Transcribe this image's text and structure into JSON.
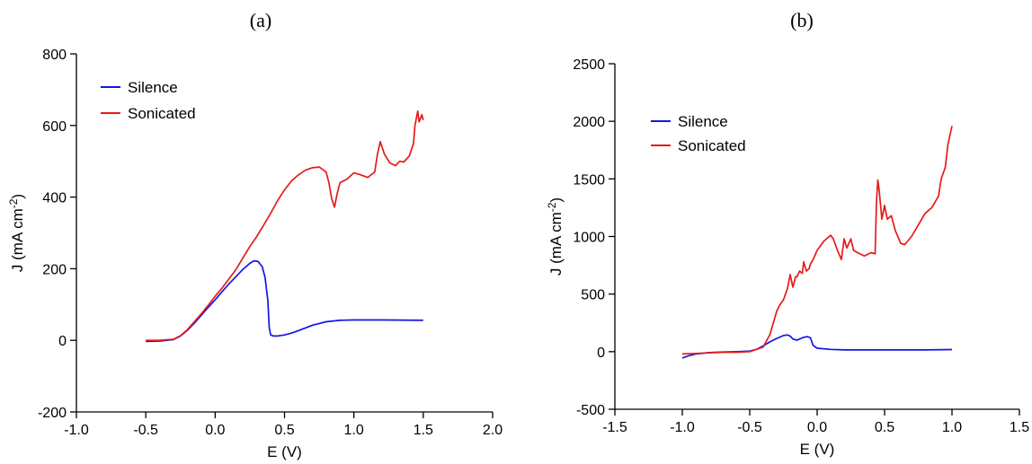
{
  "figure": {
    "panels": [
      {
        "label": "(a)"
      },
      {
        "label": "(b)"
      }
    ]
  },
  "chart_data": [
    {
      "type": "line",
      "panel": "(a)",
      "title": "",
      "xlabel": "E (V)",
      "ylabel": "J (mA cm-2)",
      "xlim": [
        -1.0,
        2.0
      ],
      "ylim": [
        -200,
        800
      ],
      "xticks": [
        -1.0,
        -0.5,
        0.0,
        0.5,
        1.0,
        1.5,
        2.0
      ],
      "yticks": [
        -200,
        0,
        200,
        400,
        600,
        800
      ],
      "xtick_labels": [
        "-1.0",
        "-0.5",
        "0.0",
        "0.5",
        "1.0",
        "1.5",
        "2.0"
      ],
      "ytick_labels": [
        "-200",
        "0",
        "200",
        "400",
        "600",
        "800"
      ],
      "grid": false,
      "legend_position": "top-left",
      "series": [
        {
          "name": "Silence",
          "color": "#1515e6",
          "x": [
            -0.5,
            -0.4,
            -0.3,
            -0.25,
            -0.2,
            -0.15,
            -0.1,
            -0.05,
            0.0,
            0.05,
            0.1,
            0.15,
            0.2,
            0.25,
            0.28,
            0.31,
            0.34,
            0.36,
            0.38,
            0.39,
            0.4,
            0.42,
            0.45,
            0.5,
            0.55,
            0.6,
            0.7,
            0.8,
            0.9,
            1.0,
            1.2,
            1.5
          ],
          "y": [
            -3,
            -2,
            2,
            12,
            28,
            48,
            70,
            92,
            113,
            136,
            158,
            178,
            198,
            215,
            222,
            220,
            205,
            175,
            110,
            35,
            15,
            12,
            12,
            15,
            20,
            27,
            42,
            52,
            56,
            57,
            57,
            56
          ]
        },
        {
          "name": "Sonicated",
          "color": "#e61a1a",
          "x": [
            -0.5,
            -0.4,
            -0.3,
            -0.25,
            -0.2,
            -0.15,
            -0.1,
            -0.05,
            0.0,
            0.05,
            0.1,
            0.15,
            0.2,
            0.25,
            0.3,
            0.35,
            0.4,
            0.45,
            0.5,
            0.55,
            0.6,
            0.65,
            0.7,
            0.75,
            0.8,
            0.82,
            0.84,
            0.86,
            0.88,
            0.9,
            0.95,
            1.0,
            1.05,
            1.1,
            1.15,
            1.17,
            1.19,
            1.22,
            1.26,
            1.3,
            1.33,
            1.36,
            1.4,
            1.43,
            1.44,
            1.46,
            1.47,
            1.49,
            1.5
          ],
          "y": [
            0,
            0,
            3,
            13,
            30,
            52,
            74,
            98,
            123,
            146,
            172,
            198,
            230,
            262,
            290,
            322,
            355,
            390,
            420,
            445,
            462,
            475,
            482,
            484,
            470,
            440,
            395,
            372,
            410,
            440,
            450,
            468,
            462,
            455,
            470,
            520,
            555,
            520,
            495,
            488,
            500,
            498,
            515,
            550,
            600,
            640,
            610,
            630,
            615
          ]
        }
      ]
    },
    {
      "type": "line",
      "panel": "(b)",
      "title": "",
      "xlabel": "E (V)",
      "ylabel": "J (mA cm-2)",
      "xlim": [
        -1.5,
        1.5
      ],
      "ylim": [
        -500,
        2500
      ],
      "xticks": [
        -1.5,
        -1.0,
        -0.5,
        0.0,
        0.5,
        1.0,
        1.5
      ],
      "yticks": [
        -500,
        0,
        500,
        1000,
        1500,
        2000,
        2500
      ],
      "xtick_labels": [
        "-1.5",
        "-1.0",
        "-0.5",
        "0.0",
        "0.5",
        "1.0",
        "1.5"
      ],
      "ytick_labels": [
        "-500",
        "0",
        "500",
        "1000",
        "1500",
        "2000",
        "2500"
      ],
      "grid": false,
      "legend_position": "top-left",
      "series": [
        {
          "name": "Silence",
          "color": "#1515e6",
          "x": [
            -1.0,
            -0.95,
            -0.9,
            -0.8,
            -0.7,
            -0.6,
            -0.5,
            -0.45,
            -0.4,
            -0.35,
            -0.3,
            -0.25,
            -0.22,
            -0.2,
            -0.18,
            -0.15,
            -0.12,
            -0.1,
            -0.07,
            -0.05,
            -0.03,
            0.0,
            0.1,
            0.2,
            0.4,
            0.6,
            0.8,
            1.0
          ],
          "y": [
            -55,
            -35,
            -20,
            -8,
            -3,
            0,
            5,
            20,
            50,
            85,
            115,
            140,
            145,
            135,
            110,
            100,
            115,
            125,
            130,
            120,
            55,
            30,
            20,
            15,
            15,
            15,
            15,
            18
          ]
        },
        {
          "name": "Sonicated",
          "color": "#e61a1a",
          "x": [
            -1.0,
            -0.9,
            -0.8,
            -0.7,
            -0.6,
            -0.5,
            -0.45,
            -0.4,
            -0.35,
            -0.3,
            -0.28,
            -0.25,
            -0.22,
            -0.2,
            -0.18,
            -0.16,
            -0.15,
            -0.13,
            -0.11,
            -0.1,
            -0.08,
            -0.06,
            -0.05,
            -0.03,
            0.0,
            0.05,
            0.1,
            0.12,
            0.15,
            0.18,
            0.2,
            0.22,
            0.25,
            0.27,
            0.3,
            0.35,
            0.4,
            0.43,
            0.44,
            0.45,
            0.46,
            0.48,
            0.5,
            0.52,
            0.55,
            0.58,
            0.62,
            0.65,
            0.7,
            0.75,
            0.8,
            0.85,
            0.9,
            0.92,
            0.95,
            0.97,
            1.0
          ],
          "y": [
            -20,
            -15,
            -10,
            -5,
            -5,
            0,
            20,
            40,
            150,
            350,
            400,
            450,
            550,
            670,
            560,
            650,
            650,
            700,
            680,
            780,
            700,
            720,
            760,
            800,
            880,
            960,
            1010,
            980,
            880,
            800,
            980,
            900,
            980,
            880,
            860,
            830,
            860,
            850,
            1300,
            1490,
            1400,
            1150,
            1270,
            1150,
            1180,
            1050,
            940,
            930,
            1000,
            1100,
            1200,
            1250,
            1350,
            1500,
            1600,
            1800,
            1960
          ]
        }
      ]
    }
  ]
}
